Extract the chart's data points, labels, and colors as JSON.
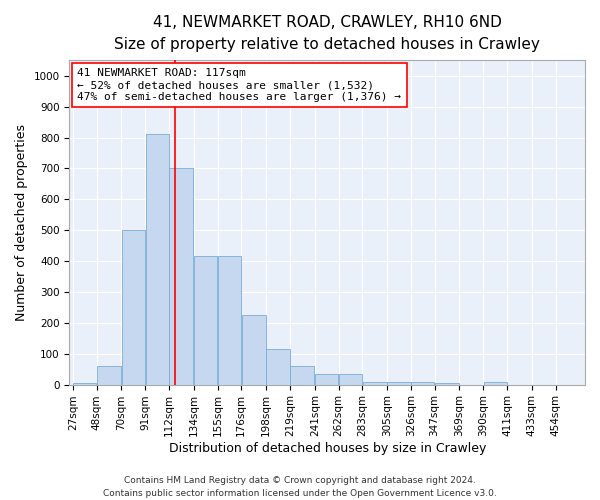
{
  "title_line1": "41, NEWMARKET ROAD, CRAWLEY, RH10 6ND",
  "title_line2": "Size of property relative to detached houses in Crawley",
  "xlabel": "Distribution of detached houses by size in Crawley",
  "ylabel": "Number of detached properties",
  "annotation_line1": "41 NEWMARKET ROAD: 117sqm",
  "annotation_line2": "← 52% of detached houses are smaller (1,532)",
  "annotation_line3": "47% of semi-detached houses are larger (1,376) →",
  "footer_line1": "Contains HM Land Registry data © Crown copyright and database right 2024.",
  "footer_line2": "Contains public sector information licensed under the Open Government Licence v3.0.",
  "bar_color": "#c5d8f0",
  "bar_edge_color": "#7aadd4",
  "background_color": "#eaf0f9",
  "grid_color": "#ffffff",
  "fig_facecolor": "#ffffff",
  "red_line_x": 117,
  "categories": [
    "27sqm",
    "48sqm",
    "70sqm",
    "91sqm",
    "112sqm",
    "134sqm",
    "155sqm",
    "176sqm",
    "198sqm",
    "219sqm",
    "241sqm",
    "262sqm",
    "283sqm",
    "305sqm",
    "326sqm",
    "347sqm",
    "369sqm",
    "390sqm",
    "411sqm",
    "433sqm",
    "454sqm"
  ],
  "bin_edges": [
    27,
    48,
    70,
    91,
    112,
    134,
    155,
    176,
    198,
    219,
    241,
    262,
    283,
    305,
    326,
    347,
    369,
    390,
    411,
    433,
    454,
    475
  ],
  "values": [
    5,
    60,
    500,
    810,
    700,
    415,
    415,
    225,
    115,
    60,
    35,
    35,
    10,
    10,
    10,
    5,
    0,
    10,
    0,
    0,
    0
  ],
  "ylim": [
    0,
    1050
  ],
  "yticks": [
    0,
    100,
    200,
    300,
    400,
    500,
    600,
    700,
    800,
    900,
    1000
  ],
  "title_fontsize": 11,
  "subtitle_fontsize": 9.5,
  "axis_label_fontsize": 9,
  "tick_fontsize": 7.5,
  "annotation_fontsize": 8,
  "footer_fontsize": 6.5
}
